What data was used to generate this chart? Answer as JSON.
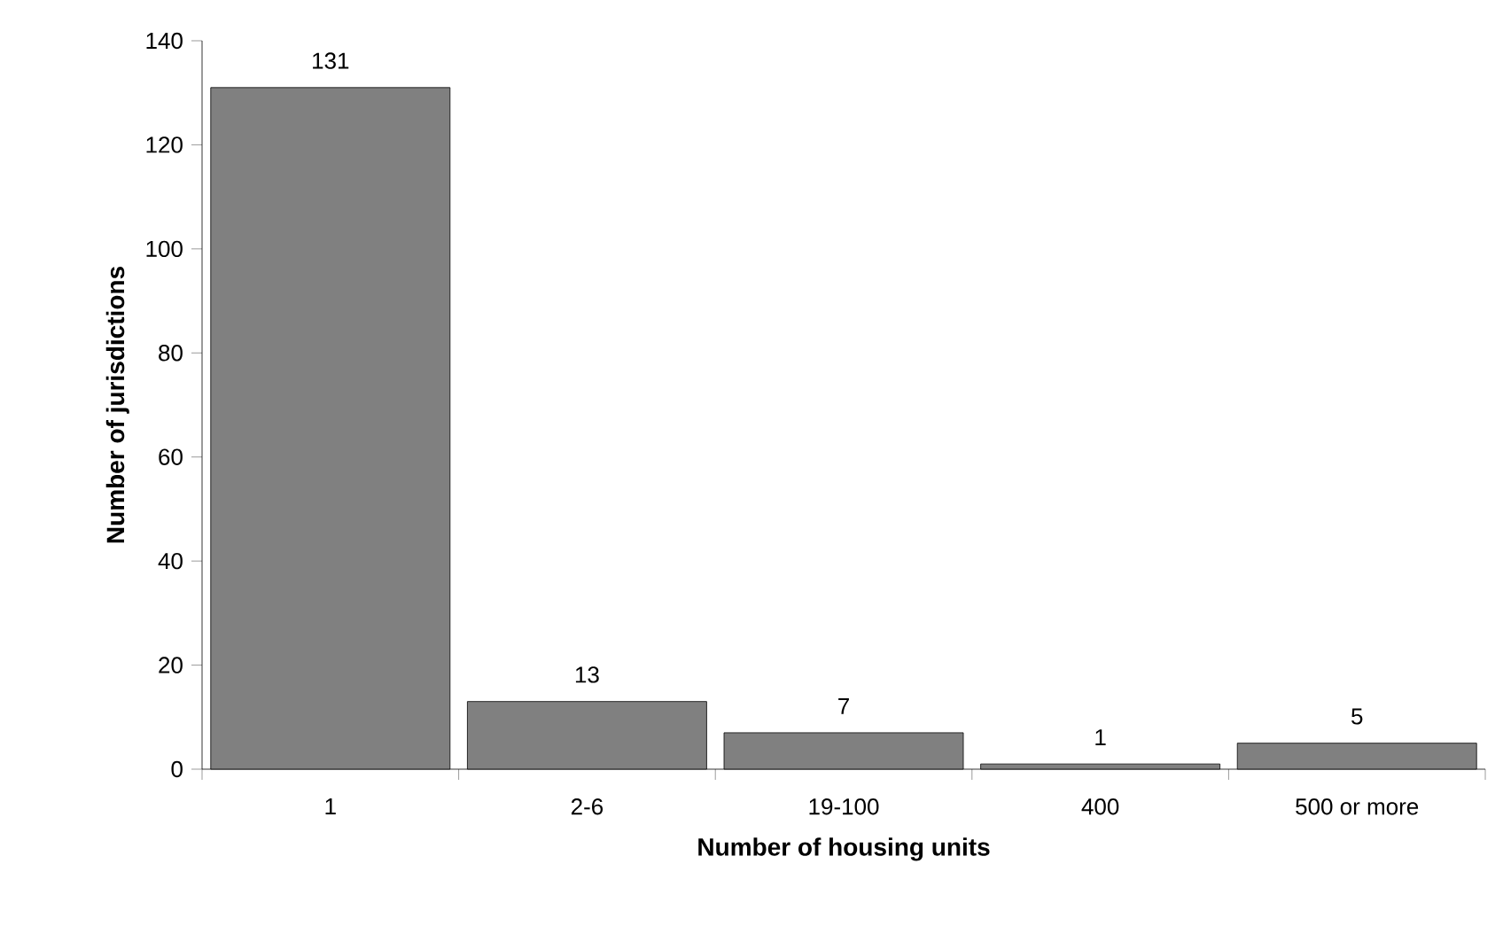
{
  "chart_data": {
    "type": "bar",
    "categories": [
      "1",
      "2-6",
      "19-100",
      "400",
      "500 or more"
    ],
    "values": [
      131,
      13,
      7,
      1,
      5
    ],
    "color": "#808080",
    "ylim": [
      0,
      140
    ],
    "yticks": [
      0,
      20,
      40,
      60,
      80,
      100,
      120,
      140
    ],
    "xlabel": "Number of housing units",
    "ylabel": "Number of jurisdictions",
    "data_labels": true
  }
}
